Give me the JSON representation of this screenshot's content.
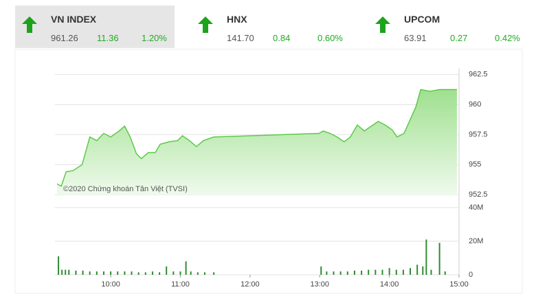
{
  "header": {
    "tiles": [
      {
        "name": "VN INDEX",
        "price": "961.26",
        "change": "11.36",
        "percent": "1.20%"
      },
      {
        "name": "HNX",
        "price": "141.70",
        "change": "0.84",
        "percent": "0.60%"
      },
      {
        "name": "UPCOM",
        "price": "63.91",
        "change": "0.27",
        "percent": "0.42%"
      }
    ]
  },
  "chart_data": [
    {
      "type": "area",
      "annotation": "©2020 Chứng khoán Tân Việt (TVSI)",
      "color": "#5cc94a",
      "grid": true,
      "xlim": [
        9.2,
        15
      ],
      "ylim": [
        952.5,
        963
      ],
      "yticks": [
        952.5,
        955,
        957.5,
        960,
        962.5
      ],
      "x": [
        9.23,
        9.29,
        9.36,
        9.46,
        9.59,
        9.7,
        9.8,
        9.9,
        10,
        10.12,
        10.2,
        10.28,
        10.37,
        10.44,
        10.54,
        10.64,
        10.71,
        10.84,
        10.96,
        11.03,
        11.13,
        11.23,
        11.33,
        11.48,
        12.99,
        13.05,
        13.15,
        13.25,
        13.35,
        13.44,
        13.54,
        13.64,
        13.74,
        13.84,
        13.94,
        14.04,
        14.11,
        14.21,
        14.28,
        14.38,
        14.45,
        14.58,
        14.72,
        14.97
      ],
      "values": [
        953.4,
        953.2,
        954.4,
        954.5,
        955,
        957.3,
        957,
        957.6,
        957.3,
        957.8,
        958.2,
        957.3,
        955.9,
        955.5,
        956,
        956,
        956.7,
        956.9,
        957,
        957.4,
        957,
        956.5,
        957,
        957.3,
        957.6,
        957.8,
        957.6,
        957.3,
        956.9,
        957.3,
        958.3,
        957.8,
        958.2,
        958.6,
        958.3,
        957.9,
        957.3,
        957.6,
        958.5,
        959.8,
        961.25,
        961.1,
        961.25,
        961.25
      ]
    },
    {
      "type": "bar",
      "color": "#2e8b2e",
      "grid": true,
      "xlim": [
        9.2,
        15
      ],
      "ylim": [
        0,
        42000000
      ],
      "yticks": [
        0,
        {
          "value": 20000000,
          "label": "20M"
        },
        {
          "value": 40000000,
          "label": "40M"
        }
      ],
      "xticks": [
        {
          "value": 10,
          "label": "10:00"
        },
        {
          "value": 11,
          "label": "11:00"
        },
        {
          "value": 12,
          "label": "12:00"
        },
        {
          "value": 13,
          "label": "13:00"
        },
        {
          "value": 14,
          "label": "14:00"
        },
        {
          "value": 15,
          "label": "15:00"
        }
      ],
      "x": [
        9.25,
        9.3,
        9.35,
        9.4,
        9.5,
        9.6,
        9.7,
        9.8,
        9.9,
        10,
        10.1,
        10.2,
        10.3,
        10.4,
        10.5,
        10.6,
        10.7,
        10.8,
        10.9,
        11,
        11.08,
        11.15,
        11.25,
        11.35,
        11.48,
        13.02,
        13.1,
        13.2,
        13.3,
        13.4,
        13.5,
        13.6,
        13.7,
        13.8,
        13.9,
        14,
        14.1,
        14.2,
        14.3,
        14.4,
        14.48,
        14.53,
        14.6,
        14.72,
        14.8
      ],
      "values": [
        11000000,
        3000000,
        3000000,
        3000000,
        2500000,
        2500000,
        2000000,
        2000000,
        2000000,
        2000000,
        2000000,
        2000000,
        2000000,
        1500000,
        1500000,
        2000000,
        1500000,
        5000000,
        2000000,
        2000000,
        8000000,
        2000000,
        1500000,
        1500000,
        1500000,
        5000000,
        2000000,
        2000000,
        2000000,
        2000000,
        2500000,
        2500000,
        3000000,
        3000000,
        3000000,
        4000000,
        3000000,
        3000000,
        4000000,
        6000000,
        5000000,
        21000000,
        3000000,
        19000000,
        2000000
      ]
    }
  ]
}
